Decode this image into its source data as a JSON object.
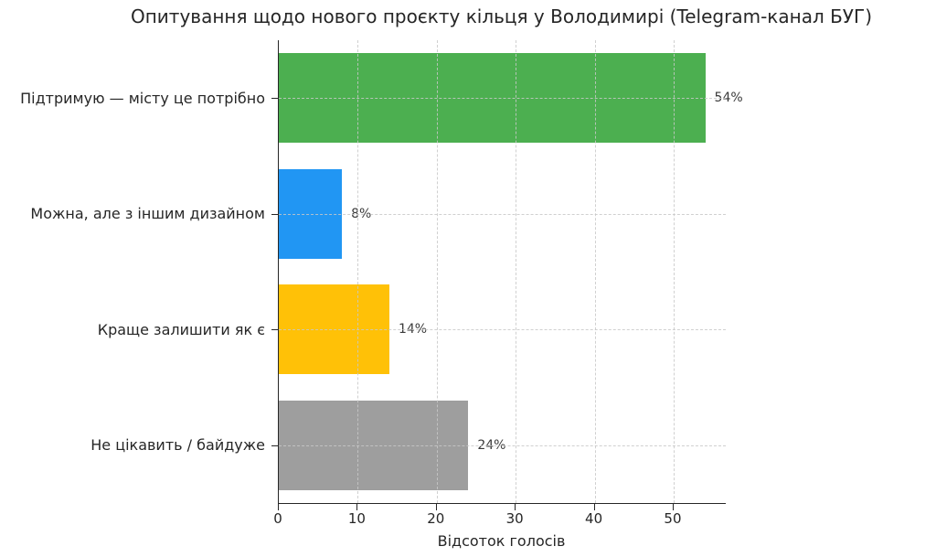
{
  "figure": {
    "title": "Опитування щодо нового проєкту кільця у Володимирі (Telegram-канал БУГ)",
    "background": "#ffffff"
  },
  "chart_data": {
    "type": "bar",
    "orientation": "horizontal",
    "title": "Опитування щодо нового проєкту кільця у Володимирі (Telegram-канал БУГ)",
    "categories": [
      "Підтримую — місту це потрібно",
      "Можна, але з іншим дизайном",
      "Краще залишити як є",
      "Не цікавить / байдуже"
    ],
    "values": [
      54,
      8,
      14,
      24
    ],
    "value_labels": [
      "54%",
      "8%",
      "14%",
      "24%"
    ],
    "bar_colors": [
      "#4caf50",
      "#2196f3",
      "#ffc107",
      "#9e9e9e"
    ],
    "xlabel": "Відсоток голосів",
    "ylabel": "",
    "xticks": [
      0,
      10,
      20,
      30,
      40,
      50
    ],
    "xlim": [
      0,
      56.6
    ],
    "grid": "dashed gridlines on both axes, drawn over bars",
    "legend_position": "none",
    "spines": [
      "left",
      "bottom"
    ],
    "text_color": "#262626",
    "grid_color": "#c8c8c8"
  }
}
